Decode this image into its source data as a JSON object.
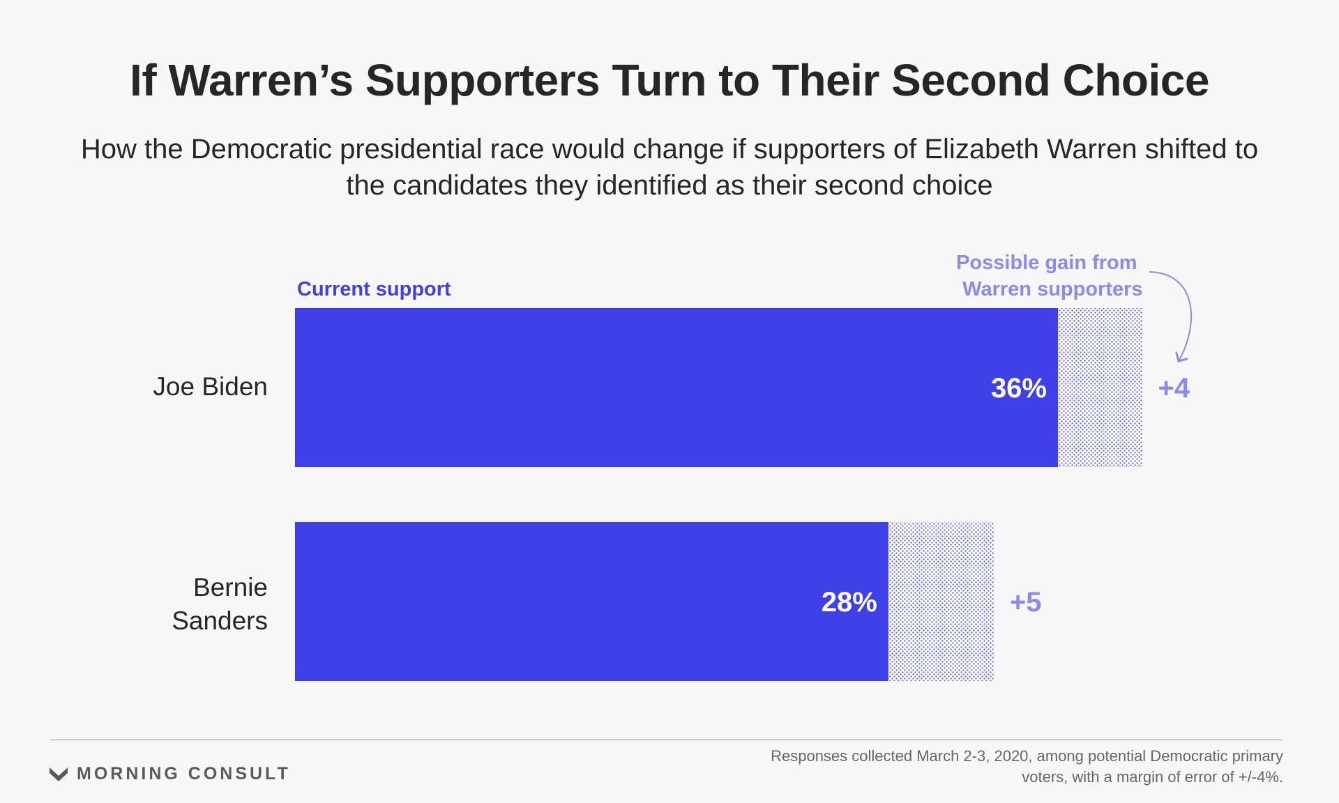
{
  "title": "If Warren’s Supporters Turn to Their Second Choice",
  "subtitle": "How the Democratic presidential race would change if supporters of Elizabeth Warren shifted to the candidates they identified as their second choice",
  "colors": {
    "current": "#4040e8",
    "gain": "#8b8bef",
    "text": "#262626"
  },
  "chart_data": {
    "type": "bar",
    "orientation": "horizontal",
    "stacked": true,
    "categories": [
      "Joe Biden",
      "Bernie Sanders"
    ],
    "series": [
      {
        "name": "Current support",
        "values": [
          36,
          28
        ],
        "labels": [
          "36%",
          "28%"
        ]
      },
      {
        "name": "Possible gain from Warren supporters",
        "values": [
          4,
          5
        ],
        "labels": [
          "+4",
          "+5"
        ]
      }
    ],
    "xlim": [
      0,
      40
    ],
    "grid": false
  },
  "footer": {
    "brand": "MORNING CONSULT",
    "source": "Responses collected March 2-3, 2020, among potential Democratic primary voters, with a margin of error of +/-4%."
  }
}
